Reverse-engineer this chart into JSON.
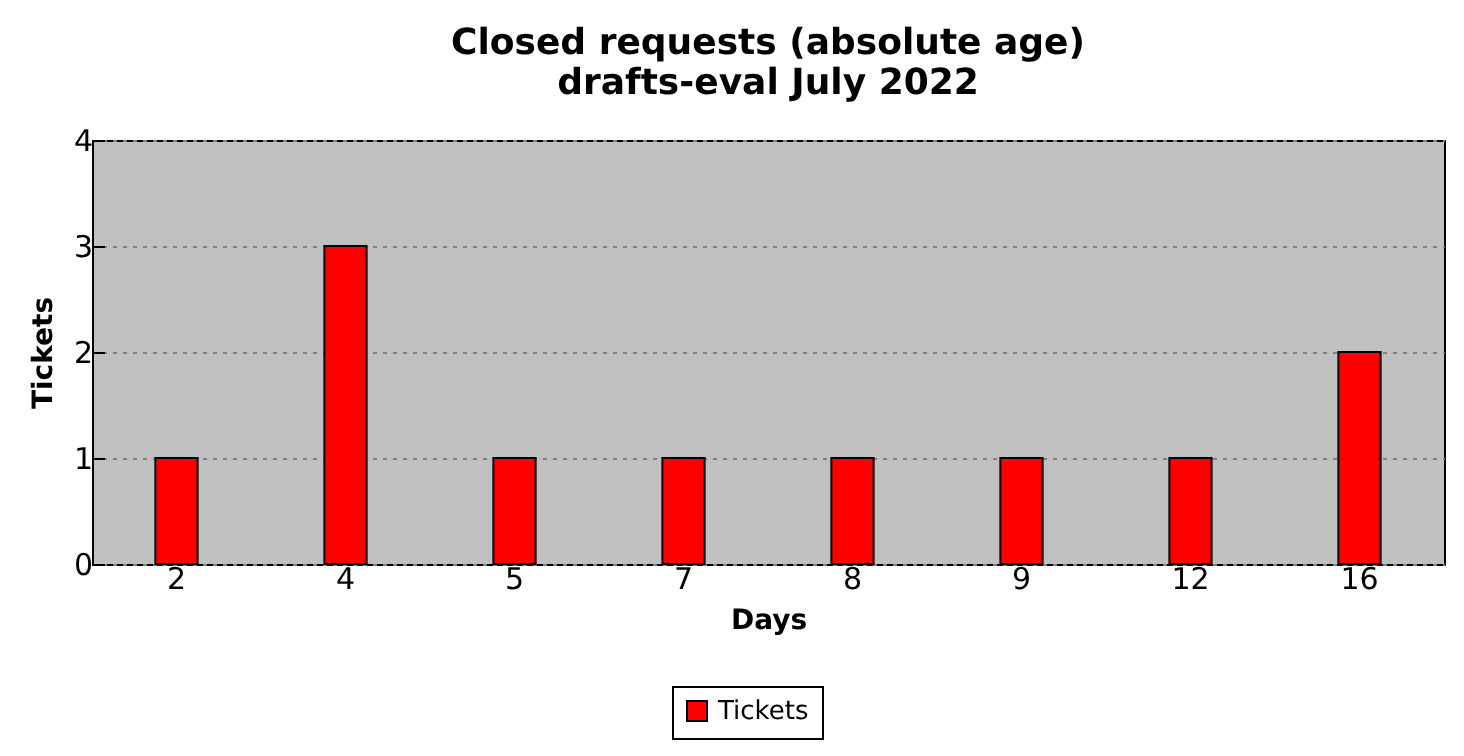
{
  "chart_data": {
    "type": "bar",
    "title": "Closed requests (absolute age)",
    "subtitle": "drafts-eval July 2022",
    "xlabel": "Days",
    "ylabel": "Tickets",
    "categories": [
      "2",
      "4",
      "5",
      "7",
      "8",
      "9",
      "12",
      "16"
    ],
    "series": [
      {
        "name": "Tickets",
        "color": "#ff0000",
        "values": [
          1,
          3,
          1,
          1,
          1,
          1,
          1,
          2
        ]
      }
    ],
    "ylim": [
      0,
      4
    ],
    "yticks": [
      0,
      1,
      2,
      3,
      4
    ],
    "grid": "y",
    "legend": "bottom"
  }
}
